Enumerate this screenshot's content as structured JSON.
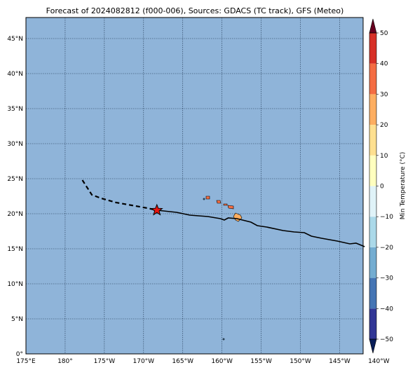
{
  "title": "Forecast of 2024082812 (f000-006), Sources: GDACS (TC track), GFS (Meteo)",
  "colors": {
    "ocean": "#8fb4d9",
    "grid": "#1f3550",
    "track": "#000000",
    "star_fill": "#e8150f",
    "land_warm": "#fdae61",
    "land_hot": "#f46d43"
  },
  "map": {
    "lon_ticks": [
      "175°E",
      "180°",
      "175°W",
      "170°W",
      "165°W",
      "160°W",
      "155°W",
      "150°W",
      "145°W",
      "140°W"
    ],
    "lat_ticks": [
      "0°",
      "5°N",
      "10°N",
      "15°N",
      "20°N",
      "25°N",
      "30°N",
      "35°N",
      "40°N",
      "45°N"
    ],
    "storm_marker": "star-icon"
  },
  "chart_data": {
    "type": "map",
    "projection": "PlateCarree (lon 175°E–142°W, lat 0°–48°N)",
    "xlim": [
      175,
      218
    ],
    "ylim": [
      0,
      48
    ],
    "grid": true,
    "current_position": {
      "lon": 191.7,
      "lat": 20.5
    },
    "track_past_dashed": [
      [
        182.2,
        24.8
      ],
      [
        183.4,
        22.7
      ],
      [
        184.6,
        22.2
      ],
      [
        186.5,
        21.6
      ],
      [
        188.5,
        21.2
      ],
      [
        190.5,
        20.8
      ],
      [
        191.7,
        20.5
      ]
    ],
    "track_forecast_solid": [
      [
        191.7,
        20.5
      ],
      [
        194.2,
        20.2
      ],
      [
        195.9,
        19.8
      ],
      [
        198.2,
        19.6
      ],
      [
        199.8,
        19.3
      ],
      [
        200.3,
        19.1
      ],
      [
        200.8,
        19.4
      ],
      [
        201.9,
        19.3
      ],
      [
        203.7,
        18.8
      ],
      [
        204.5,
        18.3
      ],
      [
        205.7,
        18.1
      ],
      [
        207.8,
        17.6
      ],
      [
        209.2,
        17.4
      ],
      [
        210.5,
        17.3
      ],
      [
        211.4,
        16.8
      ],
      [
        212.7,
        16.5
      ],
      [
        214.7,
        16.1
      ],
      [
        216.3,
        15.7
      ],
      [
        217.1,
        15.8
      ],
      [
        218.2,
        15.3
      ]
    ],
    "colorbar": {
      "label": "Min Temperature (°C)",
      "ticks": [
        -50,
        -40,
        -30,
        -20,
        -10,
        0,
        10,
        20,
        30,
        40,
        50
      ],
      "extend": "both",
      "colors": [
        "#313695",
        "#4575b4",
        "#74add1",
        "#abd9e9",
        "#e0f3f8",
        "#ffffbf",
        "#fee090",
        "#fdae61",
        "#f46d43",
        "#d73027",
        "#a50026",
        "#081d58",
        "#67001f"
      ]
    }
  }
}
